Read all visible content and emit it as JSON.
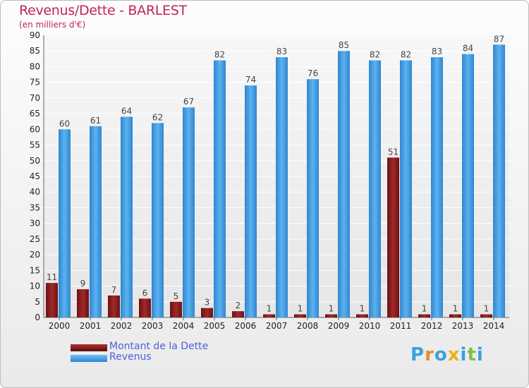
{
  "title": "Revenus/Dette - BARLEST",
  "subtitle": "(en milliers d'€)",
  "logo": {
    "text": "Proxiti",
    "colors": [
      "#3aa0e0",
      "#f08a24",
      "#3aa0e0",
      "#e8b21a",
      "#3aa0e0",
      "#7cc242",
      "#3aa0e0"
    ]
  },
  "colors": {
    "debt": "#8b1a1a",
    "revenue": "#4aa3e6",
    "title": "#c0245c",
    "legend_text": "#4f61d6"
  },
  "chart_data": {
    "type": "bar",
    "title": "Revenus/Dette - BARLEST",
    "subtitle": "(en milliers d'€)",
    "categories": [
      "2000",
      "2001",
      "2002",
      "2003",
      "2004",
      "2005",
      "2006",
      "2007",
      "2008",
      "2009",
      "2010",
      "2011",
      "2012",
      "2013",
      "2014"
    ],
    "series": [
      {
        "name": "Montant de la Dette",
        "values": [
          11,
          9,
          7,
          6,
          5,
          3,
          2,
          1,
          1,
          1,
          1,
          51,
          1,
          1,
          1
        ]
      },
      {
        "name": "Revenus",
        "values": [
          60,
          61,
          64,
          62,
          67,
          82,
          74,
          83,
          76,
          85,
          82,
          82,
          83,
          84,
          87
        ]
      }
    ],
    "ylim": [
      0,
      90
    ],
    "yticks": [
      0,
      5,
      10,
      15,
      20,
      25,
      30,
      35,
      40,
      45,
      50,
      55,
      60,
      65,
      70,
      75,
      80,
      85,
      90
    ],
    "grid": true,
    "legend": "bottom-left"
  }
}
